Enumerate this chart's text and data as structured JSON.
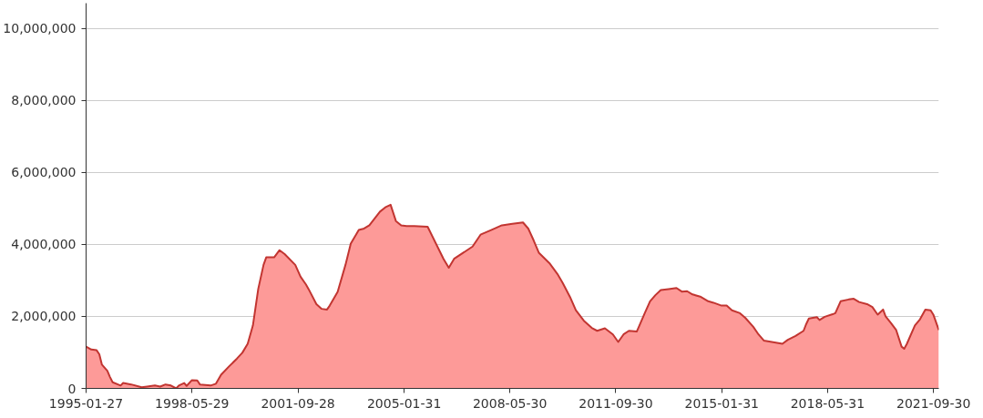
{
  "chart_data": {
    "type": "area",
    "color": "#fd9a98",
    "x": [
      "1995-01-27",
      "1995-03-28",
      "1995-05-28",
      "1995-06-28",
      "1995-07-28",
      "1995-09-28",
      "1995-10-28",
      "1995-11-28",
      "1996-02-28",
      "1996-03-28",
      "1996-06-28",
      "1996-10-28",
      "1996-12-28",
      "1997-03-28",
      "1997-05-28",
      "1997-07-28",
      "1997-09-28",
      "1997-11-28",
      "1997-12-28",
      "1998-02-28",
      "1998-03-28",
      "1998-05-28",
      "1998-07-28",
      "1998-08-28",
      "1998-12-28",
      "1999-02-28",
      "1999-04-28",
      "1999-07-28",
      "1999-10-28",
      "1999-12-28",
      "2000-02-28",
      "2000-04-28",
      "2000-06-28",
      "2000-08-28",
      "2000-09-28",
      "2000-12-28",
      "2001-02-28",
      "2001-04-28",
      "2001-08-28",
      "2001-10-28",
      "2001-12-28",
      "2002-01-28",
      "2002-04-28",
      "2002-06-28",
      "2002-08-28",
      "2002-09-28",
      "2002-12-28",
      "2003-03-28",
      "2003-05-28",
      "2003-08-28",
      "2003-10-28",
      "2003-12-28",
      "2004-04-28",
      "2004-06-28",
      "2004-08-28",
      "2004-10-28",
      "2004-12-28",
      "2005-02-28",
      "2005-05-28",
      "2005-10-28",
      "2006-04-28",
      "2006-06-28",
      "2006-08-28",
      "2007-03-28",
      "2007-06-28",
      "2007-10-28",
      "2008-02-28",
      "2008-06-28",
      "2008-10-28",
      "2008-12-28",
      "2009-02-28",
      "2009-04-28",
      "2009-08-28",
      "2009-11-28",
      "2010-01-28",
      "2010-04-28",
      "2010-06-28",
      "2010-09-28",
      "2010-12-28",
      "2011-02-28",
      "2011-05-28",
      "2011-08-28",
      "2011-10-28",
      "2011-12-28",
      "2012-02-28",
      "2012-05-28",
      "2012-06-28",
      "2012-08-28",
      "2012-10-28",
      "2012-12-28",
      "2013-02-28",
      "2013-05-28",
      "2013-08-28",
      "2013-10-28",
      "2013-12-28",
      "2014-02-28",
      "2014-05-28",
      "2014-08-28",
      "2014-10-28",
      "2015-01-28",
      "2015-03-28",
      "2015-05-28",
      "2015-08-28",
      "2015-10-28",
      "2016-01-28",
      "2016-03-28",
      "2016-05-28",
      "2016-09-28",
      "2016-12-28",
      "2017-02-28",
      "2017-05-28",
      "2017-08-28",
      "2017-09-28",
      "2017-10-28",
      "2018-01-28",
      "2018-02-28",
      "2018-04-28",
      "2018-07-28",
      "2018-08-28",
      "2018-10-28",
      "2019-01-28",
      "2019-03-28",
      "2019-05-28",
      "2019-08-28",
      "2019-10-28",
      "2019-12-28",
      "2020-02-28",
      "2020-03-28",
      "2020-05-28",
      "2020-07-28",
      "2020-09-28",
      "2020-10-28",
      "2020-11-28",
      "2021-02-28",
      "2021-04-28",
      "2021-06-28",
      "2021-08-28",
      "2021-09-28",
      "2021-11-30"
    ],
    "values": [
      1160000,
      1080000,
      1060000,
      950000,
      660000,
      490000,
      320000,
      170000,
      80000,
      150000,
      110000,
      30000,
      50000,
      80000,
      50000,
      110000,
      80000,
      0,
      80000,
      150000,
      70000,
      230000,
      220000,
      110000,
      80000,
      130000,
      380000,
      610000,
      830000,
      990000,
      1240000,
      1750000,
      2760000,
      3430000,
      3640000,
      3640000,
      3840000,
      3730000,
      3430000,
      3100000,
      2890000,
      2760000,
      2340000,
      2210000,
      2190000,
      2300000,
      2680000,
      3430000,
      4020000,
      4400000,
      4440000,
      4530000,
      4910000,
      5030000,
      5100000,
      4650000,
      4530000,
      4510000,
      4510000,
      4490000,
      3600000,
      3350000,
      3600000,
      3940000,
      4270000,
      4400000,
      4530000,
      4570000,
      4610000,
      4440000,
      4110000,
      3770000,
      3480000,
      3180000,
      2930000,
      2510000,
      2170000,
      1880000,
      1680000,
      1600000,
      1670000,
      1500000,
      1290000,
      1500000,
      1600000,
      1580000,
      1750000,
      2090000,
      2420000,
      2590000,
      2730000,
      2760000,
      2790000,
      2690000,
      2700000,
      2610000,
      2550000,
      2420000,
      2380000,
      2300000,
      2300000,
      2170000,
      2090000,
      1960000,
      1710000,
      1500000,
      1330000,
      1280000,
      1240000,
      1350000,
      1460000,
      1600000,
      1790000,
      1940000,
      1980000,
      1900000,
      1990000,
      2060000,
      2090000,
      2420000,
      2470000,
      2490000,
      2400000,
      2340000,
      2260000,
      2050000,
      2190000,
      2000000,
      1820000,
      1620000,
      1160000,
      1100000,
      1240000,
      1750000,
      1920000,
      2190000,
      2170000,
      2050000,
      1620000
    ],
    "xlim": [
      "1995-01-27",
      "2021-11-30"
    ],
    "xticks": [
      "1995-01-27",
      "1998-05-29",
      "2001-09-28",
      "2005-01-31",
      "2008-05-30",
      "2011-09-30",
      "2015-01-31",
      "2018-05-31",
      "2021-09-30"
    ],
    "ylim": [
      0,
      10700000
    ],
    "yticks": [
      0,
      {
        "value": 2000000,
        "label": "2,000,000"
      },
      {
        "value": 4000000,
        "label": "4,000,000"
      },
      {
        "value": 6000000,
        "label": "6,000,000"
      },
      {
        "value": 8000000,
        "label": "8,000,000"
      },
      {
        "value": 10000000,
        "label": "10,000,000"
      }
    ],
    "grid": "y"
  }
}
